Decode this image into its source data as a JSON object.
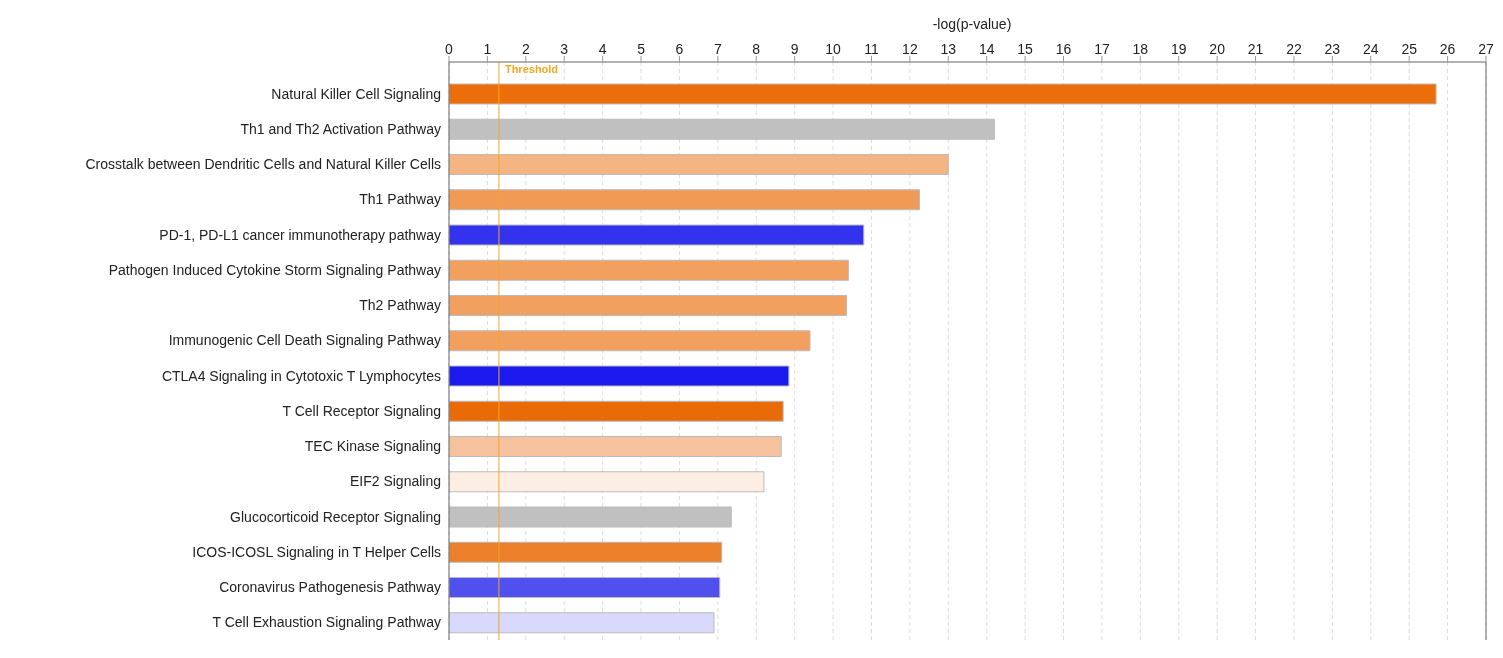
{
  "chart_data": {
    "type": "bar",
    "orientation": "horizontal",
    "xlabel": "-log(p-value)",
    "categories": [
      "Natural Killer Cell Signaling",
      "Th1 and Th2 Activation Pathway",
      "Crosstalk between Dendritic Cells and Natural Killer Cells",
      "Th1 Pathway",
      "PD-1, PD-L1 cancer immunotherapy pathway",
      "Pathogen Induced Cytokine Storm Signaling Pathway",
      "Th2 Pathway",
      "Immunogenic Cell Death Signaling Pathway",
      "CTLA4 Signaling in Cytotoxic T Lymphocytes",
      "T Cell Receptor Signaling",
      "TEC Kinase Signaling",
      "EIF2 Signaling",
      "Glucocorticoid Receptor Signaling",
      "ICOS-ICOSL Signaling in T Helper Cells",
      "Coronavirus Pathogenesis Pathway",
      "T Cell Exhaustion Signaling Pathway"
    ],
    "values": [
      25.7,
      14.2,
      13.0,
      12.25,
      10.8,
      10.4,
      10.35,
      9.4,
      8.85,
      8.7,
      8.65,
      8.2,
      7.35,
      7.1,
      7.05,
      6.9
    ],
    "colors": [
      "#eb6e0a",
      "#c0c0c0",
      "#f4b582",
      "#f09a55",
      "#3333ee",
      "#f2a060",
      "#f2a060",
      "#f2a060",
      "#1a1aee",
      "#e96b08",
      "#f5c29d",
      "#fdeee4",
      "#c0c0c0",
      "#ec7f2a",
      "#5050ee",
      "#d8d8fa"
    ],
    "xlim": [
      0,
      27
    ],
    "xticks": [
      0,
      1,
      2,
      3,
      4,
      5,
      6,
      7,
      8,
      9,
      10,
      11,
      12,
      13,
      14,
      15,
      16,
      17,
      18,
      19,
      20,
      21,
      22,
      23,
      24,
      25,
      26,
      27
    ],
    "ref_lines": [
      {
        "axis": "x",
        "value": 1.3,
        "label": "Threshold",
        "color": "#f5a623"
      }
    ],
    "grid": "x"
  }
}
